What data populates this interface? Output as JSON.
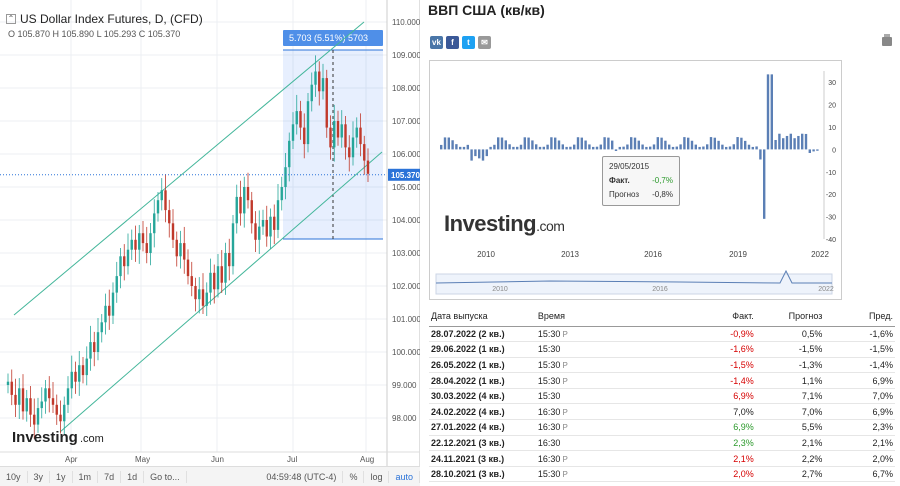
{
  "futures": {
    "title": "US Dollar Index Futures, D, (CFD)",
    "ohlc": "O 105.870  H 105.890  L 105.293  C 105.370",
    "measure_label": "5.703 (5.51%) 5703",
    "price_tag": "105.370",
    "logo": "Investing",
    "logo_suffix": ".com",
    "y_ticks": [
      "110.000",
      "109.000",
      "108.000",
      "107.000",
      "106.000",
      "105.000",
      "104.000",
      "103.000",
      "102.000",
      "101.000",
      "100.000",
      "99.000",
      "98.000"
    ],
    "x_ticks": [
      "Apr",
      "May",
      "Jun",
      "Jul",
      "Aug"
    ],
    "ranges": [
      "10y",
      "3y",
      "1y",
      "1m",
      "7d",
      "1d",
      "Go to...",
      "04:59:48 (UTC-4)",
      "%",
      "log",
      "auto"
    ],
    "collapse_glyph": "⌃"
  },
  "gdp": {
    "title": "ВВП США (кв/кв)",
    "share_icons": [
      "vk",
      "f",
      "t",
      "✉"
    ],
    "chart_data": {
      "type": "bar",
      "x_ticks": [
        "2010",
        "2013",
        "2016",
        "2019",
        "2022"
      ],
      "y_ticks": [
        "30",
        "20",
        "10",
        "0",
        "-10",
        "-20",
        "-30",
        "-40"
      ],
      "ylim": [
        -40,
        35
      ],
      "navigator_labels": [
        "2010",
        "2016",
        "2022"
      ],
      "tooltip": {
        "date": "29/05/2015",
        "fact_label": "Факт.",
        "fact_value": "-0,7%",
        "forecast_label": "Прогноз",
        "forecast_value": "-0,8%"
      }
    },
    "logo": "Investing",
    "logo_suffix": ".com",
    "table": {
      "headers": [
        "Дата выпуска",
        "Время",
        "Факт.",
        "Прогноз",
        "Пред."
      ],
      "rows": [
        {
          "date": "28.07.2022 (2 кв.)",
          "time": "15:30",
          "mark": "P",
          "fact": "-0,9%",
          "fact_color": "neg",
          "forecast": "0,5%",
          "prev": "-1,6%"
        },
        {
          "date": "29.06.2022 (1 кв.)",
          "time": "15:30",
          "mark": "",
          "fact": "-1,6%",
          "fact_color": "neg",
          "forecast": "-1,5%",
          "prev": "-1,5%"
        },
        {
          "date": "26.05.2022 (1 кв.)",
          "time": "15:30",
          "mark": "P",
          "fact": "-1,5%",
          "fact_color": "neg",
          "forecast": "-1,3%",
          "prev": "-1,4%"
        },
        {
          "date": "28.04.2022 (1 кв.)",
          "time": "15:30",
          "mark": "P",
          "fact": "-1,4%",
          "fact_color": "neg",
          "forecast": "1,1%",
          "prev": "6,9%"
        },
        {
          "date": "30.03.2022 (4 кв.)",
          "time": "15:30",
          "mark": "",
          "fact": "6,9%",
          "fact_color": "neg",
          "forecast": "7,1%",
          "prev": "7,0%"
        },
        {
          "date": "24.02.2022 (4 кв.)",
          "time": "16:30",
          "mark": "P",
          "fact": "7,0%",
          "fact_color": "",
          "forecast": "7,0%",
          "prev": "6,9%"
        },
        {
          "date": "27.01.2022 (4 кв.)",
          "time": "16:30",
          "mark": "P",
          "fact": "6,9%",
          "fact_color": "pos",
          "forecast": "5,5%",
          "prev": "2,3%"
        },
        {
          "date": "22.12.2021 (3 кв.)",
          "time": "16:30",
          "mark": "",
          "fact": "2,3%",
          "fact_color": "pos",
          "forecast": "2,1%",
          "prev": "2,1%"
        },
        {
          "date": "24.11.2021 (3 кв.)",
          "time": "16:30",
          "mark": "P",
          "fact": "2,1%",
          "fact_color": "neg",
          "forecast": "2,2%",
          "prev": "2,0%"
        },
        {
          "date": "28.10.2021 (3 кв.)",
          "time": "15:30",
          "mark": "P",
          "fact": "2,0%",
          "fact_color": "neg",
          "forecast": "2,7%",
          "prev": "6,7%"
        }
      ]
    }
  }
}
